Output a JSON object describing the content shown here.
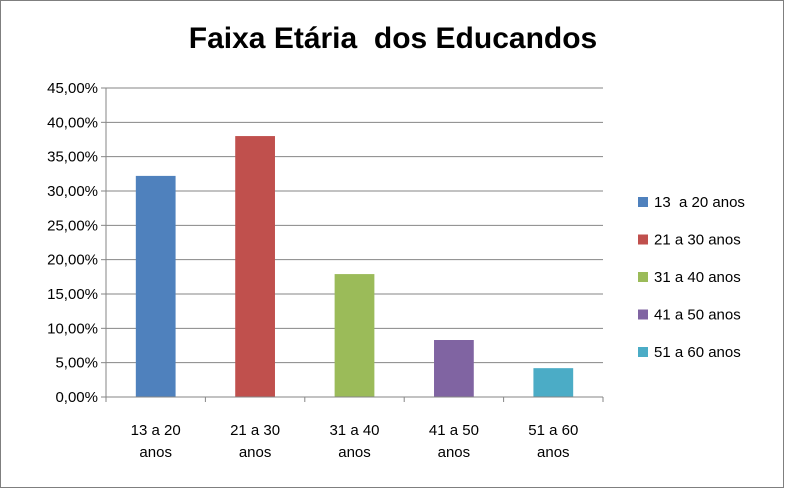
{
  "chart_data": {
    "type": "bar",
    "title": "Faixa Etária  dos Educandos",
    "categories": [
      [
        "13  a 20",
        "anos"
      ],
      [
        "21 a 30",
        "anos"
      ],
      [
        "31 a 40",
        "anos"
      ],
      [
        "41 a 50",
        "anos"
      ],
      [
        "51 a 60",
        "anos"
      ]
    ],
    "series": [
      {
        "name": "13  a 20 anos",
        "color": "#4f81bd",
        "value": 32.2
      },
      {
        "name": "21 a 30 anos",
        "color": "#c0504d",
        "value": 38.0
      },
      {
        "name": "31 a 40 anos",
        "color": "#9bbb59",
        "value": 17.9
      },
      {
        "name": "41 a 50 anos",
        "color": "#8064a2",
        "value": 8.3
      },
      {
        "name": "51 a 60 anos",
        "color": "#4bacc6",
        "value": 4.2
      }
    ],
    "ylim": [
      0,
      45
    ],
    "yticks": [
      "0,00%",
      "5,00%",
      "10,00%",
      "15,00%",
      "20,00%",
      "25,00%",
      "30,00%",
      "35,00%",
      "40,00%",
      "45,00%"
    ],
    "grid": true,
    "legend_position": "right"
  }
}
